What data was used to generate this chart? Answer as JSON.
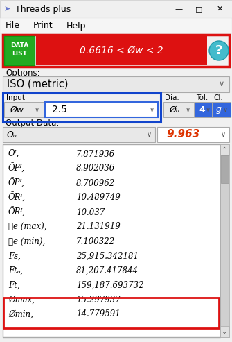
{
  "title": "Threads plus",
  "warning_text": "0.6616 < Øw < 2",
  "options_label": "Options:",
  "dropdown_options": "ISO (metric)",
  "input_label": "Input",
  "input_var": "Øw",
  "input_val": "2.5",
  "dia_label": "Dia.",
  "dia_val": "Øₒ",
  "tol_label": "Tol.",
  "tol_val": "4",
  "cl_label": "Cl.",
  "cl_val": "g",
  "output_label": "Output Data:",
  "output_var": "Ōₒ",
  "output_val": "9.963",
  "data_rows": [
    [
      "Ōᴵ,",
      "7.871936"
    ],
    [
      "ŌPᴵ,",
      "8.902036"
    ],
    [
      "ŌPᴵ,",
      "8.700962"
    ],
    [
      "ŌRᴵ,",
      "10.489749"
    ],
    [
      "ŌRᴵ,",
      "10.037"
    ],
    [
      "ℓe (max),",
      "21.131919"
    ],
    [
      "ℓe (min),",
      "7.100322"
    ],
    [
      "Fs,",
      "25,915.342181"
    ],
    [
      "Ftₒ,",
      "81,207.417844"
    ],
    [
      "Ft,",
      "159,187.693732"
    ],
    [
      "Ømax,",
      "15.297937"
    ],
    [
      "Ømin,",
      "14.779591"
    ]
  ],
  "bg_color": "#f0f0f0",
  "window_bg": "#f0f0f0",
  "titlebar_bg": "#f0f0f0",
  "menubar_bg": "#f5f5f5",
  "red_border": "#dd1111",
  "green_btn": "#22aa22",
  "red_banner": "#dd1111",
  "cyan_btn": "#44bbcc",
  "dropdown_bg": "#e8e8e8",
  "white": "#ffffff",
  "blue_border": "#1144cc",
  "blue_highlight": "#3366dd",
  "text_dark": "#111111",
  "text_red": "#dd3300",
  "text_blue": "#1144cc",
  "scrollbar_bg": "#d0d0d0",
  "scrollbar_thumb": "#aaaaaa"
}
